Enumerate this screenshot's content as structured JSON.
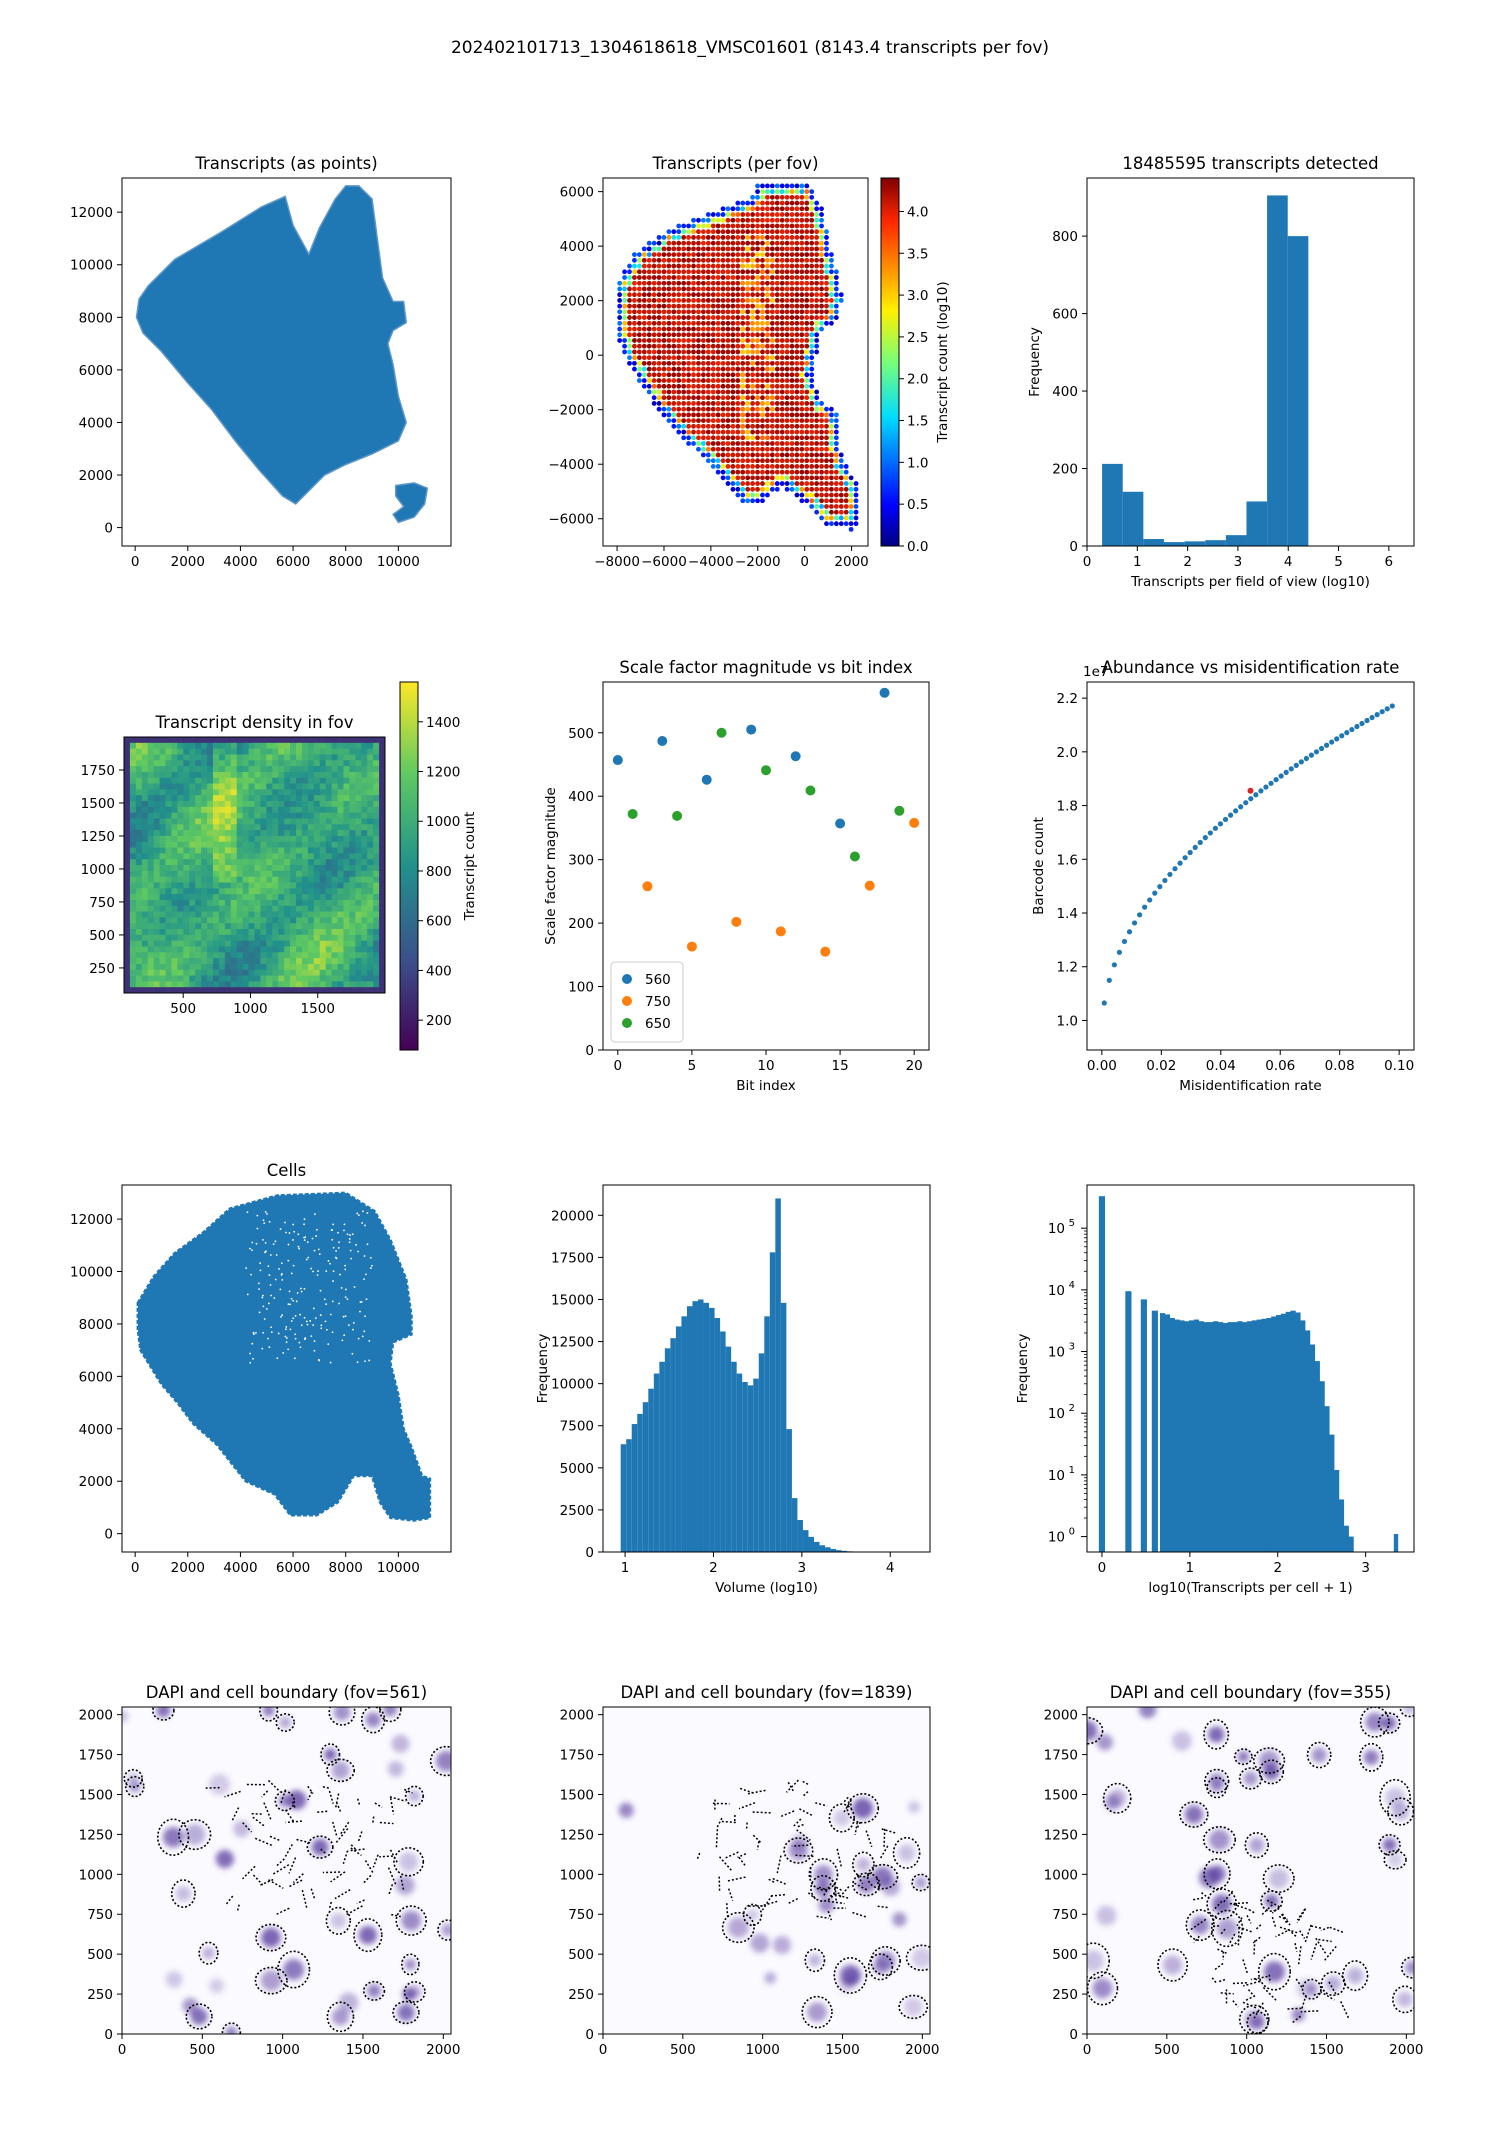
{
  "suptitle": "202402101713_1304618618_VMSC01601 (8143.4 transcripts per fov)",
  "colors": {
    "bar": "#1f77b4",
    "series_560": "#1f77b4",
    "series_750": "#ff7f0e",
    "series_650": "#2ca02c",
    "highlight": "#d62728",
    "dapi": "#5a3fa0",
    "boundary": "#000000"
  },
  "chart_data": [
    {
      "id": "transcripts_points",
      "type": "scatter",
      "title": "Transcripts (as points)",
      "xlim": [
        -500,
        12000
      ],
      "ylim": [
        -700,
        13300
      ],
      "xticks": [
        0,
        2000,
        4000,
        6000,
        8000,
        10000
      ],
      "yticks": [
        0,
        2000,
        4000,
        6000,
        8000,
        10000,
        12000
      ],
      "regions": [
        [
          [
            150,
            8700
          ],
          [
            500,
            9200
          ],
          [
            1500,
            10200
          ],
          [
            3200,
            11200
          ],
          [
            4800,
            12200
          ],
          [
            5700,
            12600
          ],
          [
            6000,
            11500
          ],
          [
            6600,
            10400
          ],
          [
            7000,
            11400
          ],
          [
            7600,
            12500
          ],
          [
            8000,
            13000
          ],
          [
            8500,
            13000
          ],
          [
            9000,
            12500
          ],
          [
            9200,
            11000
          ],
          [
            9400,
            9500
          ],
          [
            9800,
            8600
          ],
          [
            10200,
            8600
          ],
          [
            10300,
            7800
          ],
          [
            9800,
            7500
          ],
          [
            9600,
            7000
          ],
          [
            9800,
            6200
          ],
          [
            10000,
            5000
          ],
          [
            10300,
            4000
          ],
          [
            10000,
            3300
          ],
          [
            9000,
            2800
          ],
          [
            8000,
            2400
          ],
          [
            7200,
            2000
          ],
          [
            6400,
            1200
          ],
          [
            6100,
            900
          ],
          [
            5600,
            1200
          ],
          [
            4700,
            2200
          ],
          [
            3800,
            3300
          ],
          [
            2900,
            4500
          ],
          [
            2000,
            5500
          ],
          [
            1000,
            6700
          ],
          [
            300,
            7400
          ],
          [
            50,
            8000
          ]
        ],
        [
          [
            9900,
            1600
          ],
          [
            10600,
            1700
          ],
          [
            11100,
            1500
          ],
          [
            11000,
            900
          ],
          [
            10600,
            400
          ],
          [
            10000,
            200
          ],
          [
            9800,
            500
          ],
          [
            10200,
            800
          ],
          [
            9900,
            1200
          ]
        ]
      ]
    },
    {
      "id": "transcripts_fov",
      "type": "heatmap",
      "title": "Transcripts (per fov)",
      "colorbar_label": "Transcript count (log10)",
      "clim": [
        0,
        4.4
      ],
      "colorbar_ticks": [
        0.0,
        0.5,
        1.0,
        1.5,
        2.0,
        2.5,
        3.0,
        3.5,
        4.0
      ],
      "xlim": [
        -8600,
        2700
      ],
      "ylim": [
        -7000,
        6500
      ],
      "xticks": [
        -8000,
        -6000,
        -4000,
        -2000,
        0,
        2000
      ],
      "yticks": [
        -6000,
        -4000,
        -2000,
        0,
        2000,
        4000,
        6000
      ],
      "grid_step": 210,
      "region": [
        [
          -8000,
          2600
        ],
        [
          -7200,
          3800
        ],
        [
          -5800,
          4600
        ],
        [
          -4000,
          5200
        ],
        [
          -2200,
          5800
        ],
        [
          -2200,
          6300
        ],
        [
          -800,
          6400
        ],
        [
          200,
          6300
        ],
        [
          800,
          5300
        ],
        [
          1100,
          3900
        ],
        [
          1300,
          3300
        ],
        [
          1600,
          2100
        ],
        [
          1500,
          1400
        ],
        [
          700,
          800
        ],
        [
          300,
          -800
        ],
        [
          700,
          -1600
        ],
        [
          1400,
          -2200
        ],
        [
          1600,
          -3800
        ],
        [
          2200,
          -4600
        ],
        [
          2400,
          -6000
        ],
        [
          2000,
          -6400
        ],
        [
          800,
          -6200
        ],
        [
          100,
          -5500
        ],
        [
          -1000,
          -4800
        ],
        [
          -1800,
          -5400
        ],
        [
          -2600,
          -5400
        ],
        [
          -3600,
          -4400
        ],
        [
          -5000,
          -3200
        ],
        [
          -6400,
          -1800
        ],
        [
          -7600,
          -200
        ],
        [
          -8100,
          1000
        ]
      ]
    },
    {
      "id": "transcripts_hist",
      "type": "bar",
      "title": "18485595 transcripts detected",
      "xlabel": "Transcripts per field of view (log10)",
      "ylabel": "Frequency",
      "xlim": [
        0,
        6.5
      ],
      "ylim": [
        0,
        950
      ],
      "xticks": [
        0,
        1,
        2,
        3,
        4,
        5,
        6
      ],
      "yticks": [
        0,
        200,
        400,
        600,
        800
      ],
      "bin_edges": [
        0.3,
        0.71,
        1.12,
        1.53,
        1.94,
        2.35,
        2.76,
        3.17,
        3.58,
        3.99,
        4.4
      ],
      "values": [
        212,
        140,
        18,
        10,
        12,
        15,
        28,
        115,
        905,
        800
      ]
    },
    {
      "id": "density_fov",
      "type": "heatmap",
      "title": "Transcript density in fov",
      "colorbar_label": "Transcript count",
      "clim": [
        80,
        1560
      ],
      "colorbar_ticks": [
        200,
        400,
        600,
        800,
        1000,
        1200,
        1400
      ],
      "xlim": [
        60,
        2000
      ],
      "ylim": [
        60,
        2000
      ],
      "xticks": [
        500,
        1000,
        1500
      ],
      "yticks": [
        250,
        500,
        750,
        1000,
        1250,
        1500,
        1750
      ]
    },
    {
      "id": "scale_factor",
      "type": "scatter",
      "title": "Scale factor magnitude vs bit index",
      "xlabel": "Bit index",
      "ylabel": "Scale factor magnitude",
      "xlim": [
        -1,
        21
      ],
      "ylim": [
        0,
        580
      ],
      "xticks": [
        0,
        5,
        10,
        15,
        20
      ],
      "yticks": [
        0,
        100,
        200,
        300,
        400,
        500
      ],
      "legend": "lower-left",
      "series": [
        {
          "name": "560",
          "x": [
            0,
            3,
            6,
            9,
            12,
            15,
            18
          ],
          "y": [
            457,
            487,
            426,
            505,
            463,
            357,
            563
          ]
        },
        {
          "name": "750",
          "x": [
            2,
            5,
            8,
            11,
            14,
            17,
            20
          ],
          "y": [
            258,
            163,
            202,
            187,
            155,
            259,
            358
          ]
        },
        {
          "name": "650",
          "x": [
            1,
            4,
            7,
            10,
            13,
            16,
            19
          ],
          "y": [
            372,
            369,
            500,
            441,
            409,
            305,
            377
          ]
        }
      ]
    },
    {
      "id": "abundance",
      "type": "scatter",
      "title": "Abundance vs misidentification rate",
      "xlabel": "Misidentification rate",
      "ylabel": "Barcode count",
      "offset_label": "1e7",
      "xlim": [
        -0.005,
        0.105
      ],
      "ylim": [
        0.89,
        2.26
      ],
      "xticks": [
        0.0,
        0.02,
        0.04,
        0.06,
        0.08,
        0.1
      ],
      "yticks": [
        1.0,
        1.2,
        1.4,
        1.6,
        1.8,
        2.0,
        2.2
      ],
      "highlight": [
        0.05,
        1.855
      ]
    },
    {
      "id": "cells",
      "type": "scatter",
      "title": "Cells",
      "xlim": [
        -500,
        12000
      ],
      "ylim": [
        -700,
        13300
      ],
      "xticks": [
        0,
        2000,
        4000,
        6000,
        8000,
        10000
      ],
      "yticks": [
        0,
        2000,
        4000,
        6000,
        8000,
        10000,
        12000
      ],
      "regions": [
        [
          [
            100,
            8800
          ],
          [
            700,
            9800
          ],
          [
            1500,
            10700
          ],
          [
            2600,
            11500
          ],
          [
            3600,
            12400
          ],
          [
            5400,
            12900
          ],
          [
            8000,
            13000
          ],
          [
            9100,
            12300
          ],
          [
            9700,
            11200
          ],
          [
            10300,
            9700
          ],
          [
            10500,
            8300
          ],
          [
            10500,
            7600
          ],
          [
            9800,
            7300
          ],
          [
            9700,
            6500
          ],
          [
            10000,
            5300
          ],
          [
            10200,
            4000
          ],
          [
            10500,
            3300
          ],
          [
            10900,
            2200
          ],
          [
            11200,
            2100
          ],
          [
            11200,
            600
          ],
          [
            10600,
            500
          ],
          [
            9700,
            600
          ],
          [
            9300,
            1200
          ],
          [
            9000,
            2200
          ],
          [
            8300,
            2200
          ],
          [
            8000,
            1700
          ],
          [
            7700,
            1200
          ],
          [
            6900,
            700
          ],
          [
            5900,
            700
          ],
          [
            5300,
            1500
          ],
          [
            4200,
            2000
          ],
          [
            3100,
            3400
          ],
          [
            2200,
            4200
          ],
          [
            1600,
            5000
          ],
          [
            1000,
            5700
          ],
          [
            200,
            7000
          ],
          [
            100,
            7800
          ]
        ]
      ]
    },
    {
      "id": "volume_hist",
      "type": "bar",
      "title": "",
      "xlabel": "Volume (log10)",
      "ylabel": "Frequency",
      "xlim": [
        0.75,
        4.45
      ],
      "ylim": [
        0,
        21800
      ],
      "xticks": [
        1,
        2,
        3,
        4
      ],
      "yticks": [
        0,
        2500,
        5000,
        7500,
        10000,
        12500,
        15000,
        17500,
        20000
      ],
      "bin_start": 0.95,
      "bin_width": 0.0625,
      "values": [
        6400,
        6700,
        7600,
        8200,
        8900,
        9700,
        10600,
        11300,
        12100,
        12700,
        13400,
        14000,
        14600,
        14900,
        15000,
        14800,
        14500,
        13900,
        13100,
        12200,
        11300,
        10600,
        10100,
        9900,
        10300,
        11800,
        14000,
        17800,
        21000,
        14800,
        7300,
        3200,
        1900,
        1300,
        900,
        600,
        400,
        280,
        180,
        110,
        70,
        40,
        20,
        10
      ]
    },
    {
      "id": "transcripts_per_cell",
      "type": "bar",
      "title": "",
      "xlabel": "log10(Transcripts per cell + 1)",
      "ylabel": "Frequency",
      "log_y": true,
      "xlim": [
        -0.17,
        3.55
      ],
      "ylim_log": [
        -0.25,
        5.7
      ],
      "xticks": [
        0,
        1,
        2,
        3
      ],
      "yticks": [
        "10^0",
        "10^1",
        "10^2",
        "10^3",
        "10^4",
        "10^5"
      ],
      "bars": [
        [
          0.0,
          330000
        ],
        [
          0.301,
          9500
        ],
        [
          0.477,
          7000
        ],
        [
          0.602,
          4600
        ]
      ],
      "bin_start": 0.66,
      "bin_width": 0.055,
      "continuous_values": [
        4200,
        4000,
        3500,
        3300,
        3200,
        3100,
        3200,
        3300,
        3100,
        3000,
        3000,
        3100,
        3000,
        2900,
        3000,
        3000,
        3100,
        3000,
        3100,
        3200,
        3300,
        3400,
        3500,
        3700,
        3900,
        4100,
        4400,
        4600,
        4300,
        3200,
        2200,
        1300,
        700,
        330,
        130,
        45,
        12,
        4,
        1.5,
        1
      ],
      "tail_bar": [
        3.32,
        1.1
      ]
    },
    {
      "id": "dapi_561",
      "type": "scatter",
      "title": "DAPI and cell boundary (fov=561)",
      "xlim": [
        0,
        2048
      ],
      "ylim": [
        0,
        2048
      ],
      "xticks": [
        0,
        500,
        1000,
        1500,
        2000
      ],
      "yticks": [
        0,
        250,
        500,
        750,
        1000,
        1250,
        1500,
        1750,
        2000
      ],
      "seed": 561
    },
    {
      "id": "dapi_1839",
      "type": "scatter",
      "title": "DAPI and cell boundary (fov=1839)",
      "xlim": [
        0,
        2048
      ],
      "ylim": [
        0,
        2048
      ],
      "xticks": [
        0,
        500,
        1000,
        1500,
        2000
      ],
      "yticks": [
        0,
        250,
        500,
        750,
        1000,
        1250,
        1500,
        1750,
        2000
      ],
      "seed": 1839
    },
    {
      "id": "dapi_355",
      "type": "scatter",
      "title": "DAPI and cell boundary (fov=355)",
      "xlim": [
        0,
        2048
      ],
      "ylim": [
        0,
        2048
      ],
      "xticks": [
        0,
        500,
        1000,
        1500,
        2000
      ],
      "yticks": [
        0,
        250,
        500,
        750,
        1000,
        1250,
        1500,
        1750,
        2000
      ],
      "seed": 355
    }
  ]
}
